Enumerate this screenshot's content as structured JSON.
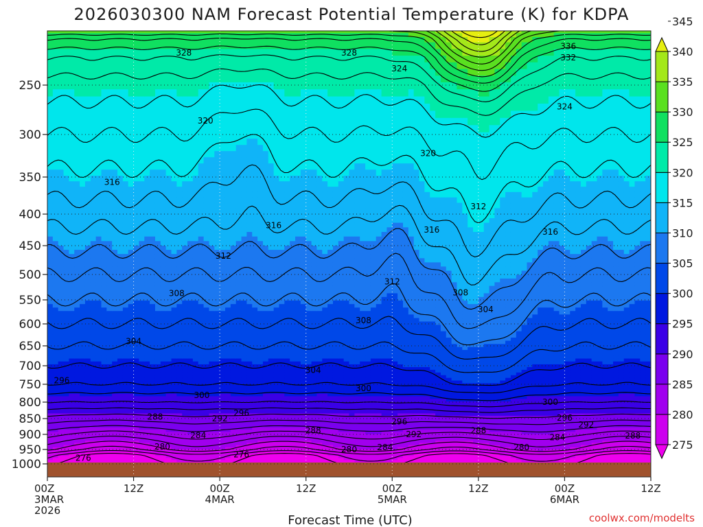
{
  "chart_data": {
    "type": "heatmap",
    "title": "2026030300 NAM Forecast Potential Temperature (K) for KDPA",
    "xlabel": "Forecast Time (UTC)",
    "ylabel": "",
    "credit": "coolwx.com/modelts",
    "x_range_hours": [
      0,
      84
    ],
    "y_range_hpa": [
      1000,
      200
    ],
    "y_ticks": [
      {
        "value": 250,
        "label": "250"
      },
      {
        "value": 300,
        "label": "300"
      },
      {
        "value": 350,
        "label": "350"
      },
      {
        "value": 400,
        "label": "400"
      },
      {
        "value": 450,
        "label": "450"
      },
      {
        "value": 500,
        "label": "500"
      },
      {
        "value": 550,
        "label": "550"
      },
      {
        "value": 600,
        "label": "600"
      },
      {
        "value": 650,
        "label": "650"
      },
      {
        "value": 700,
        "label": "700"
      },
      {
        "value": 750,
        "label": "750"
      },
      {
        "value": 800,
        "label": "800"
      },
      {
        "value": 850,
        "label": "850"
      },
      {
        "value": 900,
        "label": "900"
      },
      {
        "value": 950,
        "label": "950"
      },
      {
        "value": 1000,
        "label": "1000"
      }
    ],
    "x_ticks": [
      {
        "hour": 0,
        "lines": [
          "00Z",
          "3MAR",
          "2026"
        ]
      },
      {
        "hour": 12,
        "lines": [
          "12Z"
        ]
      },
      {
        "hour": 24,
        "lines": [
          "00Z",
          "4MAR"
        ]
      },
      {
        "hour": 36,
        "lines": [
          "12Z"
        ]
      },
      {
        "hour": 48,
        "lines": [
          "00Z",
          "5MAR"
        ]
      },
      {
        "hour": 60,
        "lines": [
          "12Z"
        ]
      },
      {
        "hour": 72,
        "lines": [
          "00Z",
          "6MAR"
        ]
      },
      {
        "hour": 84,
        "lines": [
          "12Z"
        ]
      }
    ],
    "colorbar": {
      "levels": [
        275,
        280,
        285,
        290,
        295,
        300,
        305,
        310,
        315,
        320,
        325,
        330,
        335,
        340,
        345
      ],
      "labels": [
        "275",
        "280",
        "285",
        "290",
        "295",
        "300",
        "305",
        "310",
        "315",
        "320",
        "325",
        "330",
        "335",
        "340",
        "345"
      ],
      "colors": [
        "#ee00ee",
        "#cc00ee",
        "#a000ee",
        "#7a00ee",
        "#3a00e6",
        "#0018e0",
        "#0048e8",
        "#1c78f0",
        "#10b4f8",
        "#00e6ec",
        "#00eaa8",
        "#10e060",
        "#5ae020",
        "#a4e81a",
        "#e6ee10"
      ]
    },
    "ground_color": "#a0522d",
    "contour_labels": [
      {
        "hour": 19,
        "p": 215,
        "value": "328"
      },
      {
        "hour": 42,
        "p": 215,
        "value": "328"
      },
      {
        "hour": 72.5,
        "p": 208,
        "value": "336"
      },
      {
        "hour": 72.5,
        "p": 220,
        "value": "332"
      },
      {
        "hour": 49,
        "p": 232,
        "value": "324"
      },
      {
        "hour": 72,
        "p": 272,
        "value": "324"
      },
      {
        "hour": 22,
        "p": 286,
        "value": "320"
      },
      {
        "hour": 53,
        "p": 322,
        "value": "320"
      },
      {
        "hour": 9,
        "p": 357,
        "value": "316"
      },
      {
        "hour": 31.5,
        "p": 418,
        "value": "316"
      },
      {
        "hour": 53.5,
        "p": 425,
        "value": "316"
      },
      {
        "hour": 70,
        "p": 428,
        "value": "316"
      },
      {
        "hour": 60,
        "p": 390,
        "value": "312"
      },
      {
        "hour": 24.5,
        "p": 468,
        "value": "312"
      },
      {
        "hour": 48,
        "p": 514,
        "value": "312"
      },
      {
        "hour": 18,
        "p": 537,
        "value": "308"
      },
      {
        "hour": 44,
        "p": 593,
        "value": "308"
      },
      {
        "hour": 57.5,
        "p": 536,
        "value": "308"
      },
      {
        "hour": 61,
        "p": 570,
        "value": "304"
      },
      {
        "hour": 12,
        "p": 640,
        "value": "304"
      },
      {
        "hour": 37,
        "p": 712,
        "value": "304"
      },
      {
        "hour": 44,
        "p": 762,
        "value": "300"
      },
      {
        "hour": 21.5,
        "p": 781,
        "value": "300"
      },
      {
        "hour": 70,
        "p": 800,
        "value": "300"
      },
      {
        "hour": 2,
        "p": 740,
        "value": "296"
      },
      {
        "hour": 27,
        "p": 833,
        "value": "296"
      },
      {
        "hour": 49,
        "p": 860,
        "value": "296"
      },
      {
        "hour": 72,
        "p": 848,
        "value": "296"
      },
      {
        "hour": 75,
        "p": 870,
        "value": "292"
      },
      {
        "hour": 24,
        "p": 850,
        "value": "292"
      },
      {
        "hour": 51,
        "p": 900,
        "value": "292"
      },
      {
        "hour": 15,
        "p": 845,
        "value": "288"
      },
      {
        "hour": 37,
        "p": 888,
        "value": "288"
      },
      {
        "hour": 60,
        "p": 888,
        "value": "288"
      },
      {
        "hour": 81.5,
        "p": 905,
        "value": "288"
      },
      {
        "hour": 21,
        "p": 903,
        "value": "284"
      },
      {
        "hour": 47,
        "p": 943,
        "value": "284"
      },
      {
        "hour": 71,
        "p": 910,
        "value": "284"
      },
      {
        "hour": 16,
        "p": 941,
        "value": "280"
      },
      {
        "hour": 42,
        "p": 950,
        "value": "280"
      },
      {
        "hour": 66,
        "p": 943,
        "value": "280"
      },
      {
        "hour": 5,
        "p": 980,
        "value": "276"
      },
      {
        "hour": 27,
        "p": 968,
        "value": "276"
      }
    ]
  }
}
